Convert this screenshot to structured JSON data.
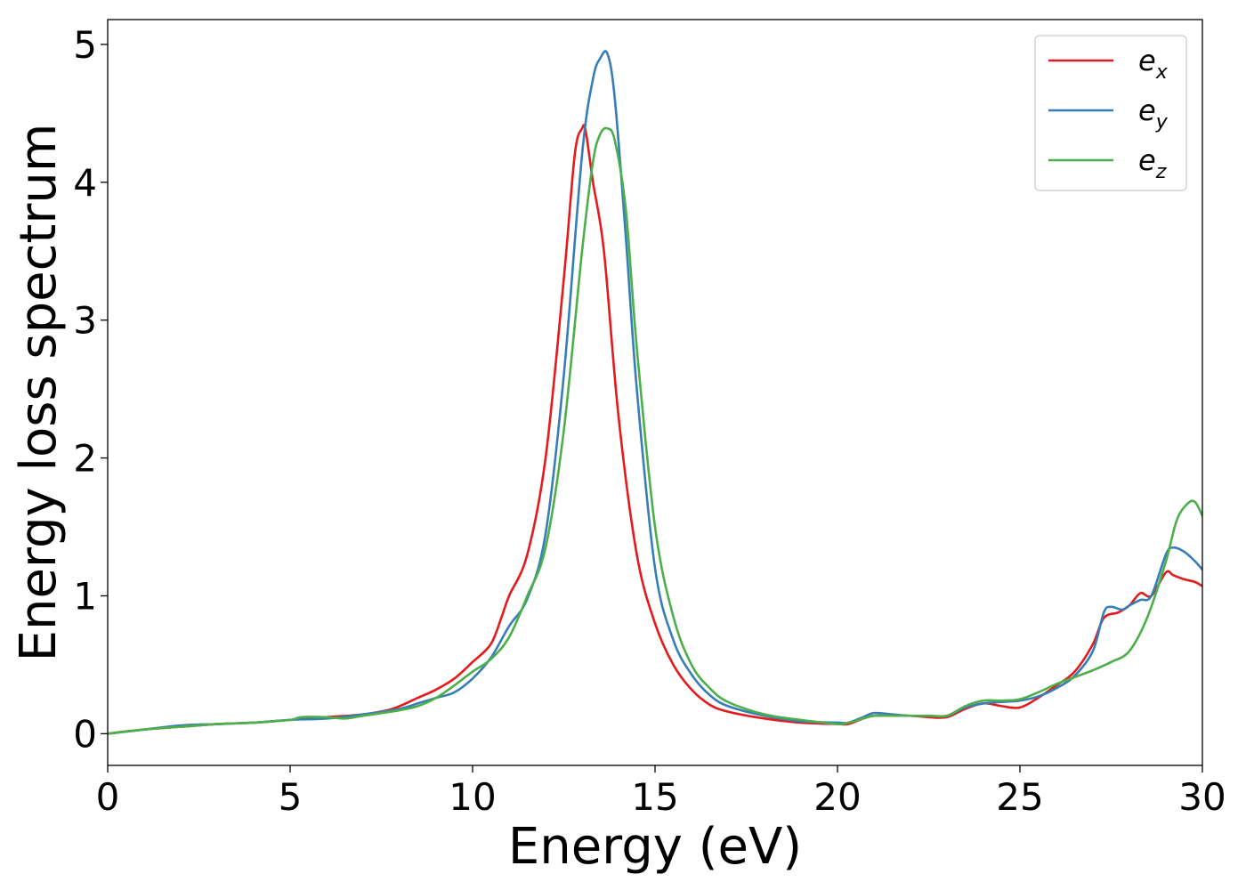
{
  "chart_data": {
    "type": "line",
    "title": "",
    "xlabel": "Energy (eV)",
    "ylabel": "Energy loss spectrum",
    "xlim": [
      0,
      30
    ],
    "ylim": [
      -0.23,
      5.18
    ],
    "xticks": [
      0,
      5,
      10,
      15,
      20,
      25,
      30
    ],
    "xtick_labels": [
      "0",
      "5",
      "10",
      "15",
      "20",
      "25",
      "30"
    ],
    "yticks": [
      0,
      1,
      2,
      3,
      4,
      5
    ],
    "ytick_labels": [
      "0",
      "1",
      "2",
      "3",
      "4",
      "5"
    ],
    "grid": false,
    "legend_position": "top-right",
    "series": [
      {
        "name": "e",
        "subscript": "x",
        "color": "#e41a1c",
        "x": [
          0,
          1,
          2,
          3,
          4,
          5,
          6,
          7,
          7.8,
          8.5,
          9,
          9.5,
          10,
          10.5,
          10.8,
          11,
          11.5,
          12,
          12.5,
          12.8,
          13,
          13.1,
          13.3,
          13.6,
          14,
          14.5,
          15,
          15.5,
          16,
          16.5,
          17,
          18,
          19,
          20,
          20.3,
          20.7,
          21,
          21.5,
          22,
          22.5,
          23,
          23.5,
          24,
          24.5,
          25,
          25.5,
          26,
          26.5,
          27,
          27.3,
          27.7,
          28,
          28.3,
          28.6,
          29,
          29.2,
          29.5,
          29.8,
          30
        ],
        "y": [
          0.0,
          0.03,
          0.05,
          0.07,
          0.08,
          0.1,
          0.12,
          0.14,
          0.18,
          0.26,
          0.32,
          0.4,
          0.52,
          0.65,
          0.85,
          1.0,
          1.3,
          2.0,
          3.3,
          4.2,
          4.39,
          4.37,
          4.0,
          3.5,
          2.3,
          1.3,
          0.8,
          0.5,
          0.32,
          0.21,
          0.16,
          0.11,
          0.08,
          0.07,
          0.07,
          0.11,
          0.13,
          0.13,
          0.13,
          0.12,
          0.12,
          0.18,
          0.22,
          0.2,
          0.19,
          0.26,
          0.35,
          0.45,
          0.65,
          0.84,
          0.88,
          0.93,
          1.02,
          1.0,
          1.17,
          1.15,
          1.12,
          1.1,
          1.07
        ]
      },
      {
        "name": "e",
        "subscript": "y",
        "color": "#377eb8",
        "x": [
          0,
          1,
          2,
          3,
          4,
          5,
          6,
          7,
          8,
          8.5,
          9,
          9.5,
          10,
          10.5,
          11,
          11.5,
          12,
          12.5,
          13,
          13.3,
          13.5,
          13.7,
          13.9,
          14.2,
          14.5,
          15,
          15.5,
          16,
          16.5,
          17,
          18,
          19,
          20,
          20.3,
          20.7,
          21,
          21.5,
          22,
          22.5,
          23,
          23.5,
          24,
          24.5,
          25,
          25.5,
          26,
          26.5,
          27,
          27.3,
          27.5,
          27.8,
          28,
          28.3,
          28.6,
          29,
          29.2,
          29.5,
          29.8,
          30
        ],
        "y": [
          0.0,
          0.03,
          0.06,
          0.07,
          0.08,
          0.1,
          0.11,
          0.14,
          0.18,
          0.22,
          0.26,
          0.3,
          0.4,
          0.55,
          0.78,
          0.98,
          1.45,
          2.6,
          4.2,
          4.75,
          4.9,
          4.93,
          4.6,
          3.6,
          2.5,
          1.2,
          0.68,
          0.43,
          0.28,
          0.2,
          0.13,
          0.09,
          0.08,
          0.08,
          0.12,
          0.15,
          0.14,
          0.13,
          0.13,
          0.13,
          0.19,
          0.22,
          0.23,
          0.24,
          0.27,
          0.33,
          0.42,
          0.6,
          0.88,
          0.92,
          0.9,
          0.93,
          0.97,
          1.0,
          1.3,
          1.35,
          1.32,
          1.25,
          1.19
        ]
      },
      {
        "name": "e",
        "subscript": "z",
        "color": "#4daf4a",
        "x": [
          0,
          1,
          2,
          3,
          4,
          5,
          5.3,
          6,
          6.5,
          7,
          8,
          8.5,
          9,
          9.5,
          10,
          10.5,
          11,
          11.5,
          12,
          12.5,
          13,
          13.3,
          13.5,
          13.7,
          13.9,
          14.2,
          14.5,
          15,
          15.5,
          16,
          16.5,
          17,
          18,
          19,
          20,
          20.3,
          20.7,
          21,
          21.5,
          22,
          22.5,
          23,
          23.5,
          24,
          24.5,
          25,
          25.5,
          26,
          26.5,
          27,
          27.5,
          28,
          28.5,
          29,
          29.3,
          29.6,
          29.8,
          30
        ],
        "y": [
          0.0,
          0.03,
          0.05,
          0.07,
          0.08,
          0.1,
          0.12,
          0.12,
          0.11,
          0.13,
          0.17,
          0.2,
          0.26,
          0.35,
          0.45,
          0.54,
          0.7,
          1.0,
          1.35,
          2.2,
          3.5,
          4.15,
          4.35,
          4.39,
          4.3,
          3.8,
          2.8,
          1.5,
          0.85,
          0.5,
          0.33,
          0.23,
          0.14,
          0.1,
          0.07,
          0.08,
          0.11,
          0.13,
          0.13,
          0.13,
          0.13,
          0.13,
          0.2,
          0.24,
          0.24,
          0.25,
          0.3,
          0.36,
          0.41,
          0.46,
          0.52,
          0.6,
          0.85,
          1.25,
          1.55,
          1.67,
          1.68,
          1.58
        ]
      }
    ]
  }
}
